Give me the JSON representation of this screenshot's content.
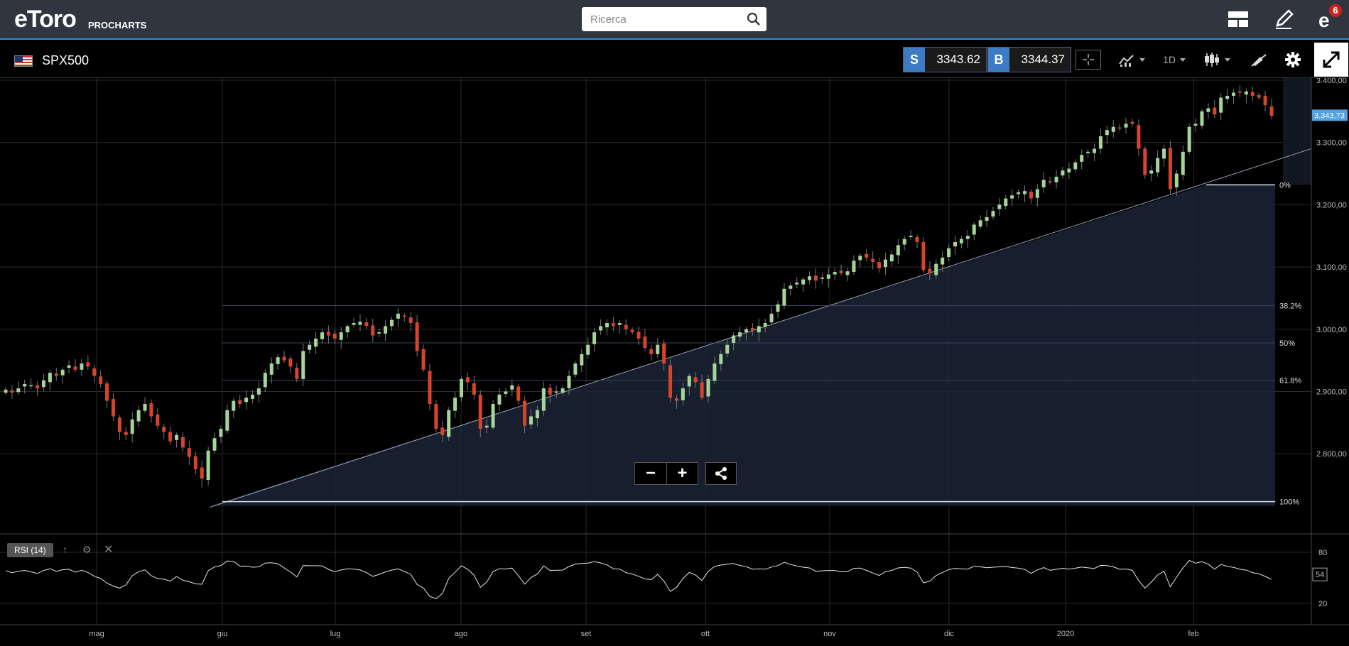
{
  "header": {
    "logo": "eToro",
    "logo_sub": "PROCHARTS",
    "search_placeholder": "Ricerca",
    "notification_count": "6"
  },
  "toolbar": {
    "symbol": "SPX500",
    "sell_label": "S",
    "sell_price": "3343.62",
    "buy_label": "B",
    "buy_price": "3344.37",
    "timeframe": "1D"
  },
  "chart_data": {
    "type": "candlestick",
    "y_ticks": [
      "3.400,00",
      "3.300,00",
      "3.200,00",
      "3.100,00",
      "3.000,00",
      "2.900,00",
      "2.800,00"
    ],
    "x_ticks": [
      "mag",
      "giu",
      "lug",
      "ago",
      "set",
      "ott",
      "nov",
      "dic",
      "2020",
      "feb"
    ],
    "ylim": [
      2750,
      3405
    ],
    "current_price_label": "3.343,73",
    "fib_levels": [
      {
        "label": "0%",
        "value": 3232
      },
      {
        "label": "38.2%",
        "value": 3038
      },
      {
        "label": "50%",
        "value": 2978
      },
      {
        "label": "61.8%",
        "value": 2918
      },
      {
        "label": "100%",
        "value": 2723
      }
    ],
    "trendline": {
      "from": {
        "x": "giu",
        "y": 2723
      },
      "to": {
        "x": "feb",
        "y": 3290
      }
    },
    "closes": [
      2903,
      2898,
      2905,
      2912,
      2910,
      2905,
      2918,
      2930,
      2925,
      2935,
      2942,
      2935,
      2945,
      2940,
      2925,
      2912,
      2885,
      2860,
      2835,
      2830,
      2855,
      2870,
      2880,
      2860,
      2845,
      2835,
      2820,
      2830,
      2810,
      2795,
      2775,
      2760,
      2805,
      2825,
      2840,
      2870,
      2885,
      2880,
      2890,
      2895,
      2905,
      2930,
      2945,
      2955,
      2950,
      2940,
      2920,
      2965,
      2975,
      2985,
      2995,
      2990,
      2985,
      2995,
      3005,
      3010,
      3012,
      3005,
      2990,
      2995,
      3005,
      3015,
      3025,
      3020,
      3010,
      2965,
      2935,
      2880,
      2840,
      2830,
      2870,
      2890,
      2920,
      2915,
      2895,
      2840,
      2845,
      2880,
      2895,
      2900,
      2910,
      2885,
      2845,
      2860,
      2870,
      2905,
      2895,
      2900,
      2905,
      2925,
      2945,
      2960,
      2975,
      2995,
      3005,
      3010,
      3005,
      3010,
      3000,
      2995,
      2985,
      2970,
      2960,
      2975,
      2945,
      2890,
      2885,
      2905,
      2925,
      2915,
      2890,
      2920,
      2945,
      2960,
      2975,
      2990,
      2995,
      3000,
      2998,
      3005,
      3010,
      3025,
      3040,
      3065,
      3070,
      3075,
      3080,
      3085,
      3078,
      3083,
      3088,
      3092,
      3090,
      3093,
      3110,
      3118,
      3115,
      3108,
      3098,
      3112,
      3120,
      3135,
      3145,
      3150,
      3140,
      3095,
      3090,
      3105,
      3115,
      3130,
      3140,
      3145,
      3150,
      3168,
      3175,
      3180,
      3190,
      3200,
      3210,
      3215,
      3220,
      3222,
      3210,
      3225,
      3240,
      3236,
      3245,
      3255,
      3258,
      3268,
      3280,
      3285,
      3290,
      3310,
      3320,
      3325,
      3323,
      3330,
      3330,
      3290,
      3248,
      3255,
      3275,
      3290,
      3225,
      3250,
      3285,
      3325,
      3330,
      3350,
      3355,
      3345,
      3372,
      3375,
      3380,
      3380,
      3382,
      3375,
      3372,
      3360,
      3343
    ],
    "rsi_label": "RSI (14)",
    "rsi_ticks": [
      "80",
      "20"
    ],
    "rsi_current": "54"
  }
}
